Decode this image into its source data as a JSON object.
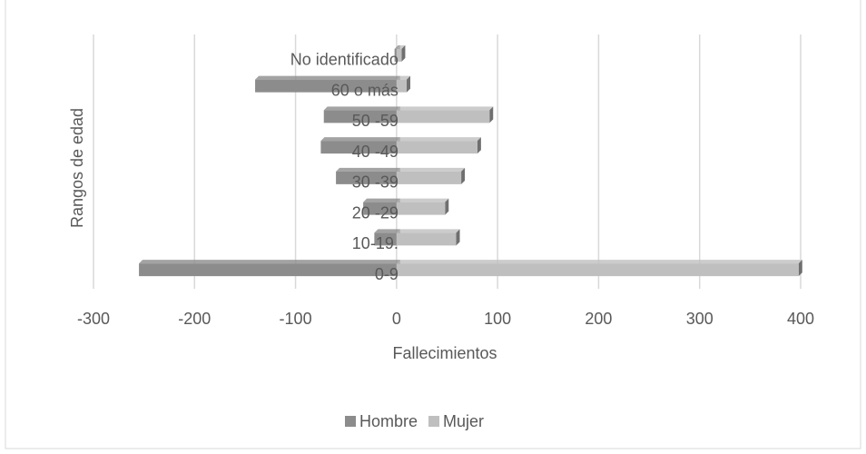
{
  "chart_data": {
    "type": "bar",
    "orientation": "horizontal",
    "x_label": "Fallecimientos",
    "y_label": "Rangos de edad",
    "categories": [
      "0-9",
      "10-19.",
      "20 -29",
      "30 -39",
      "40 -49",
      "50 -59",
      "60 o más",
      "No identificado"
    ],
    "series": [
      {
        "name": "Hombre",
        "color": "#8c8c8c",
        "values": [
          -255,
          -22,
          -33,
          -60,
          -75,
          -72,
          -140,
          -2
        ]
      },
      {
        "name": "Mujer",
        "color": "#bfbfbf",
        "values": [
          398,
          59,
          48,
          64,
          80,
          92,
          10,
          5
        ]
      }
    ],
    "xlim": [
      -300,
      400
    ],
    "xticks": [
      -300,
      -200,
      -100,
      0,
      100,
      200,
      300,
      400
    ],
    "grid": true,
    "legend": "bottom"
  }
}
